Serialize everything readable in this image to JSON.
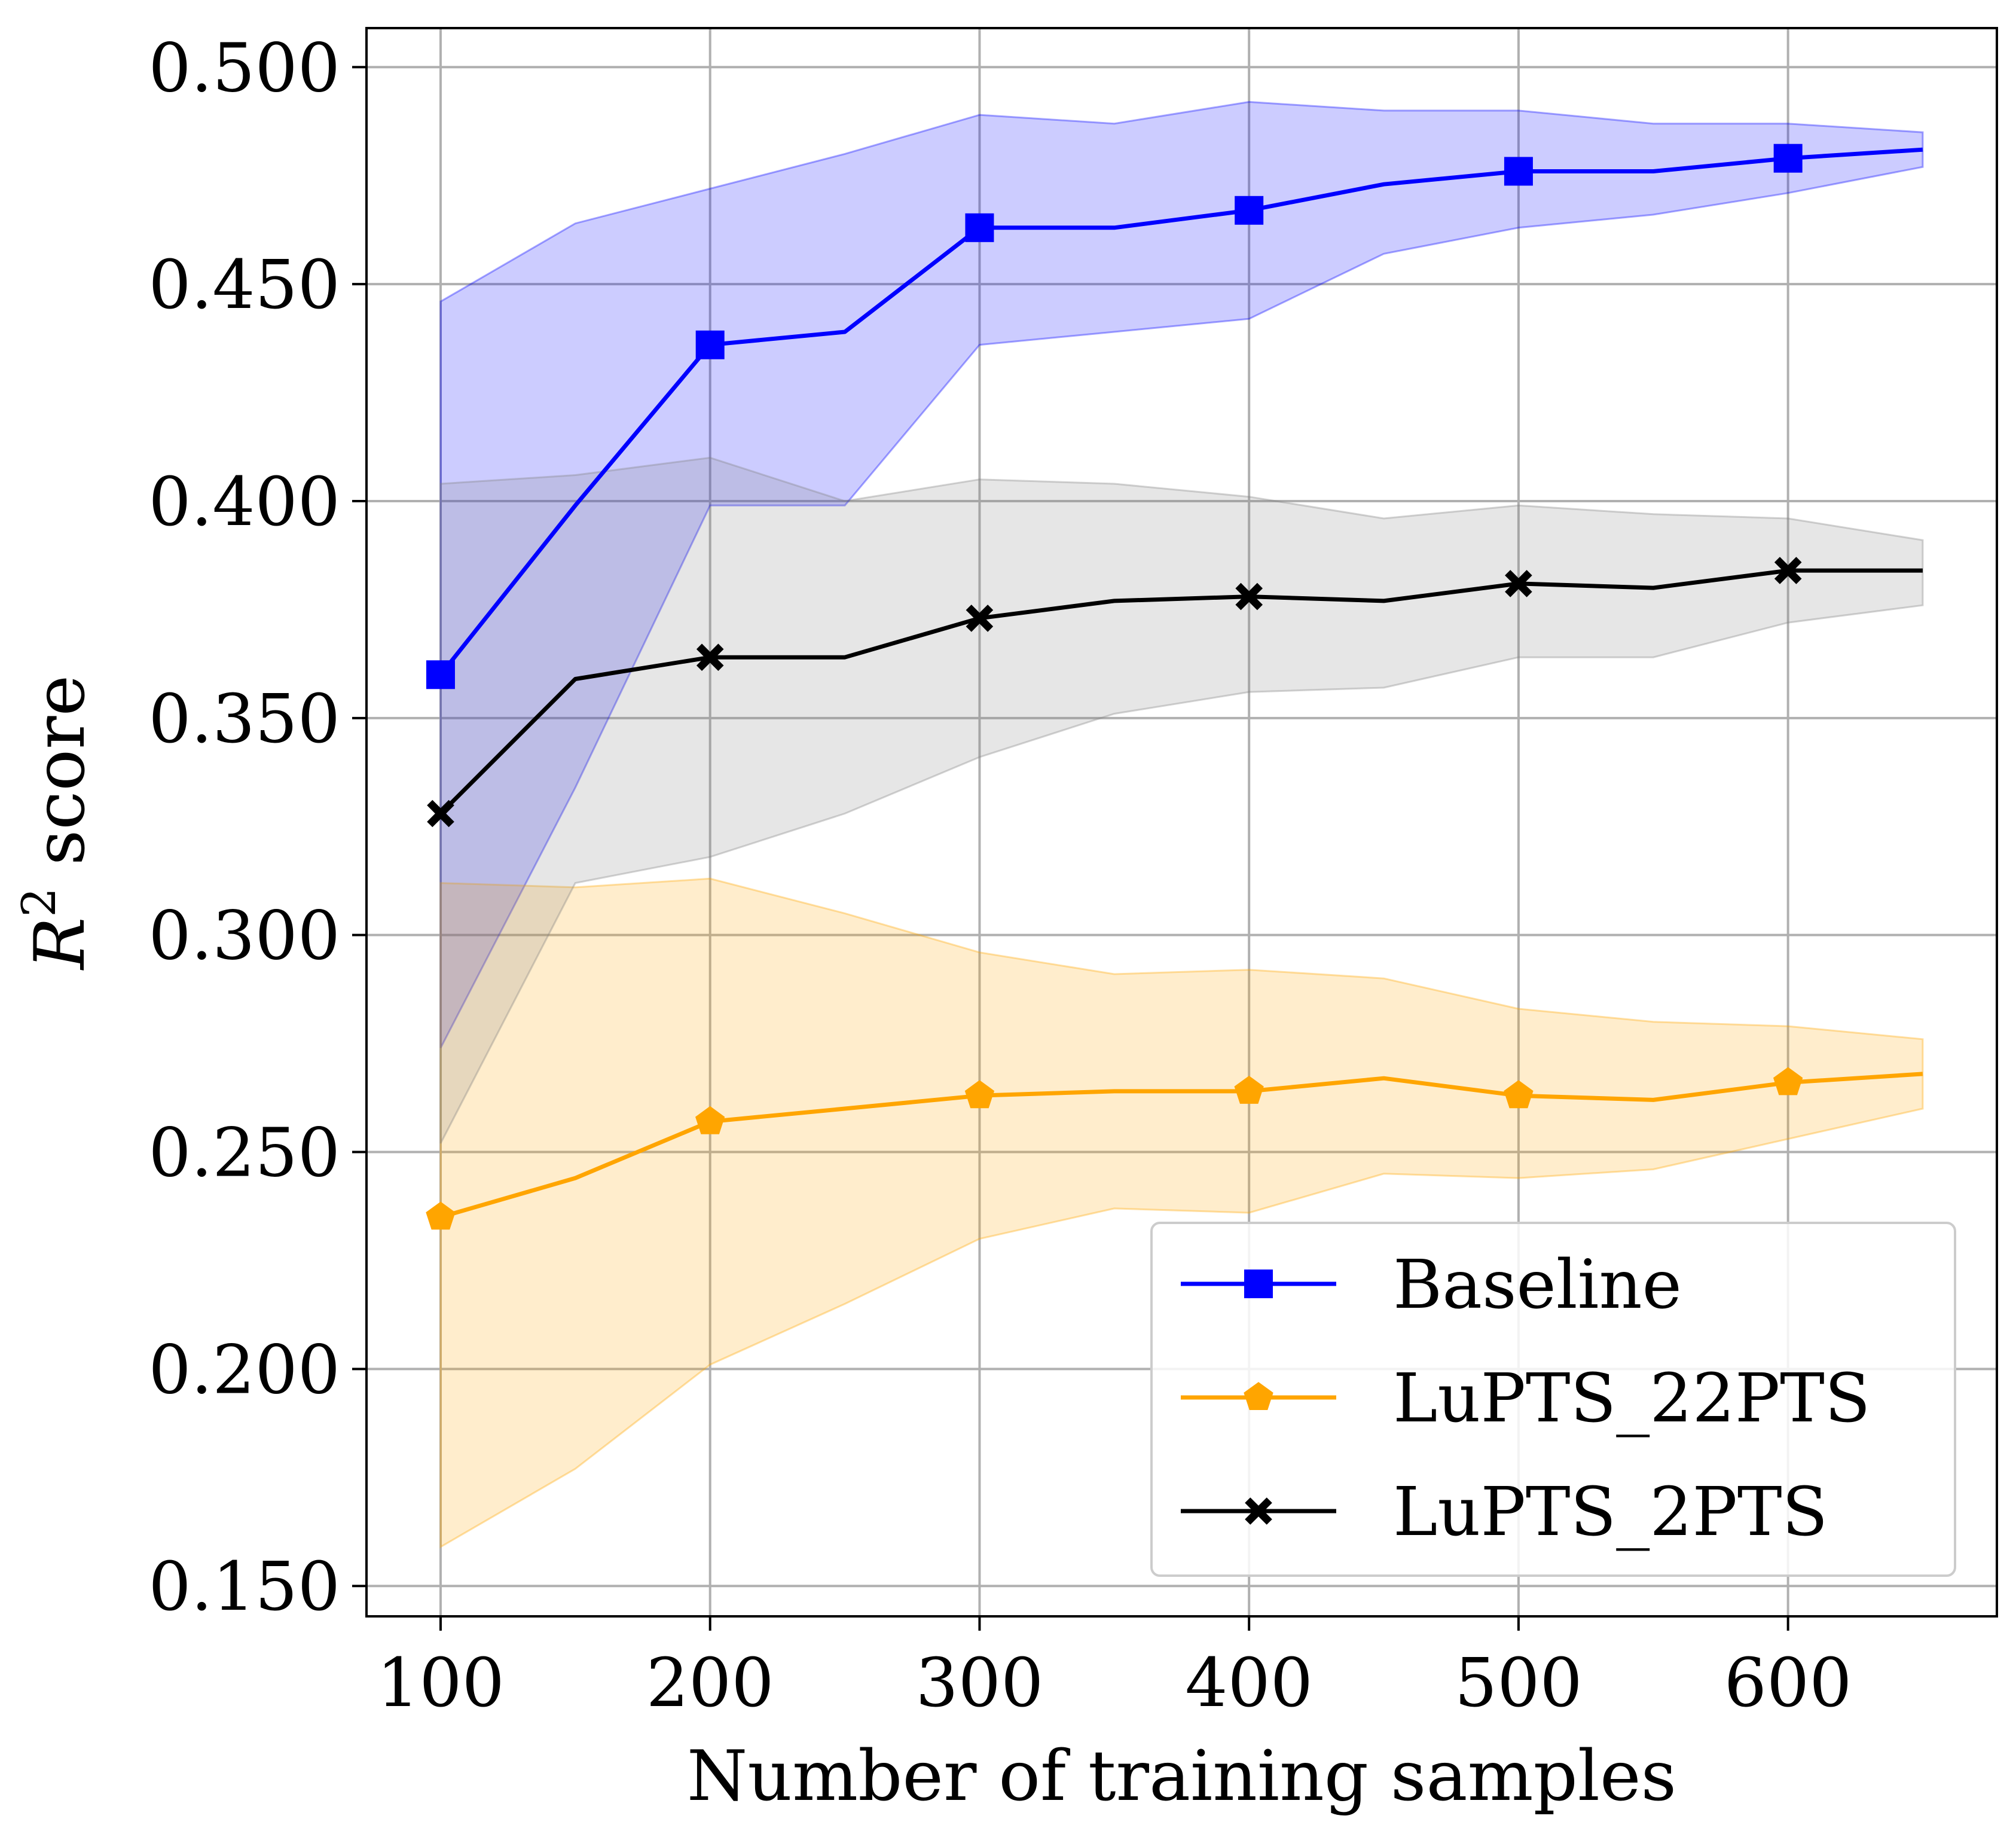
{
  "chart_data": {
    "type": "line",
    "title": "",
    "xlabel": "Number of training samples",
    "ylabel": "R² score",
    "ylabel_parts": {
      "symbol": "R",
      "superscript": "2",
      "rest": " score"
    },
    "x": [
      100,
      150,
      200,
      250,
      300,
      350,
      400,
      450,
      500,
      550,
      600,
      650
    ],
    "xlim": [
      72.5,
      677.5
    ],
    "ylim": [
      0.143,
      0.509
    ],
    "xticks": [
      100,
      200,
      300,
      400,
      500,
      600
    ],
    "xtick_labels": [
      "100",
      "200",
      "300",
      "400",
      "500",
      "600"
    ],
    "yticks": [
      0.15,
      0.2,
      0.25,
      0.3,
      0.35,
      0.4,
      0.45,
      0.5
    ],
    "ytick_labels": [
      "0.150",
      "0.200",
      "0.250",
      "0.300",
      "0.350",
      "0.400",
      "0.450",
      "0.500"
    ],
    "grid": true,
    "legend_position": "lower-right",
    "series": [
      {
        "name": "Baseline",
        "color": "#0000ff",
        "fill_color": "#0000ff",
        "marker": "square",
        "values": [
          0.36,
          0.399,
          0.436,
          0.439,
          0.463,
          0.463,
          0.467,
          0.473,
          0.476,
          0.476,
          0.479,
          0.481
        ],
        "upper": [
          0.446,
          0.464,
          0.472,
          0.48,
          0.489,
          0.487,
          0.492,
          0.49,
          0.49,
          0.487,
          0.487,
          0.485
        ],
        "lower": [
          0.274,
          0.334,
          0.399,
          0.399,
          0.436,
          0.439,
          0.442,
          0.457,
          0.463,
          0.466,
          0.471,
          0.477
        ]
      },
      {
        "name": "LuPTS_22PTS",
        "color": "#ffa500",
        "fill_color": "#ffa500",
        "marker": "pentagon",
        "values": [
          0.235,
          0.244,
          0.257,
          0.26,
          0.263,
          0.264,
          0.264,
          0.267,
          0.263,
          0.262,
          0.266,
          0.268
        ],
        "upper": [
          0.312,
          0.311,
          0.313,
          0.305,
          0.296,
          0.291,
          0.292,
          0.29,
          0.283,
          0.28,
          0.279,
          0.276
        ],
        "lower": [
          0.159,
          0.177,
          0.201,
          0.215,
          0.23,
          0.237,
          0.236,
          0.245,
          0.244,
          0.246,
          0.253,
          0.26
        ]
      },
      {
        "name": "LuPTS_2PTS",
        "color": "#000000",
        "fill_color": "#808080",
        "marker": "x",
        "values": [
          0.328,
          0.359,
          0.364,
          0.364,
          0.373,
          0.377,
          0.378,
          0.377,
          0.381,
          0.38,
          0.384,
          0.384
        ],
        "upper": [
          0.404,
          0.406,
          0.41,
          0.4,
          0.405,
          0.404,
          0.401,
          0.396,
          0.399,
          0.397,
          0.396,
          0.391
        ],
        "lower": [
          0.252,
          0.312,
          0.318,
          0.328,
          0.341,
          0.351,
          0.356,
          0.357,
          0.364,
          0.364,
          0.372,
          0.376
        ]
      }
    ],
    "marker_every_x": [
      100,
      200,
      300,
      400,
      500,
      600
    ]
  }
}
